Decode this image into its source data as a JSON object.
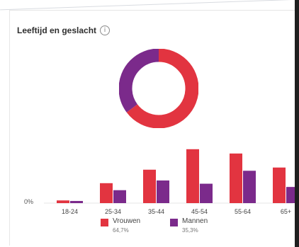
{
  "title": "Leeftijd en geslacht",
  "info_icon": "info-icon",
  "colors": {
    "women": "#e23440",
    "men": "#7b2a8b"
  },
  "donut": {
    "segments": [
      {
        "name": "Vrouwen",
        "value": 64.7
      },
      {
        "name": "Mannen",
        "value": 35.3
      }
    ]
  },
  "chart_data": {
    "type": "bar",
    "categories": [
      "18-24",
      "25-34",
      "35-44",
      "45-54",
      "55-64",
      "65+"
    ],
    "series": [
      {
        "name": "Vrouwen",
        "values": [
          0.5,
          3.7,
          6.2,
          10.0,
          9.2,
          6.6
        ]
      },
      {
        "name": "Mannen",
        "values": [
          0.4,
          2.4,
          4.2,
          3.6,
          6.0,
          3.0
        ]
      }
    ],
    "y_axis_label": "0%",
    "ylim": [
      0,
      10.5
    ],
    "legend": [
      {
        "label": "Vrouwen",
        "pct": "64,7%"
      },
      {
        "label": "Mannen",
        "pct": "35,3%"
      }
    ]
  }
}
